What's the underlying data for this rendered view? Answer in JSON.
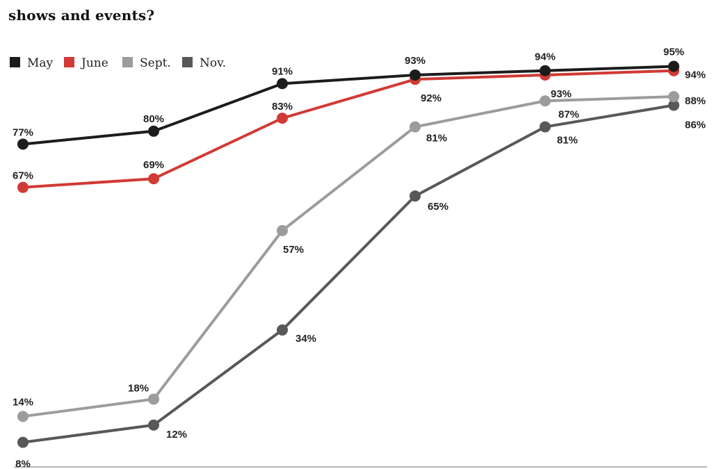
{
  "title": "shows and events?",
  "chart_data": {
    "type": "line",
    "title": "shows and events?",
    "categories": [
      "",
      "",
      "",
      "",
      "",
      ""
    ],
    "ylim": [
      0,
      100
    ],
    "grid": false,
    "legend_position": "top-left",
    "series": [
      {
        "name": "May",
        "color": "#1c1c1c",
        "values": [
          77,
          80,
          91,
          93,
          94,
          95
        ],
        "labels": [
          "77%",
          "80%",
          "91%",
          "93%",
          "94%",
          "95%"
        ]
      },
      {
        "name": "June",
        "color": "#d13a35",
        "values": [
          67,
          69,
          83,
          92,
          93,
          94
        ],
        "labels": [
          "67%",
          "69%",
          "83%",
          "92%",
          "93%",
          "94%"
        ]
      },
      {
        "name": "Sept.",
        "color": "#9c9c9e",
        "values": [
          14,
          18,
          57,
          81,
          87,
          88
        ],
        "labels": [
          "14%",
          "18%",
          "57%",
          "81%",
          "87%",
          "88%"
        ]
      },
      {
        "name": "Nov.",
        "color": "#58585b",
        "values": [
          8,
          12,
          34,
          65,
          81,
          86
        ],
        "labels": [
          "8%",
          "12%",
          "34%",
          "65%",
          "81%",
          "86%"
        ]
      }
    ]
  }
}
